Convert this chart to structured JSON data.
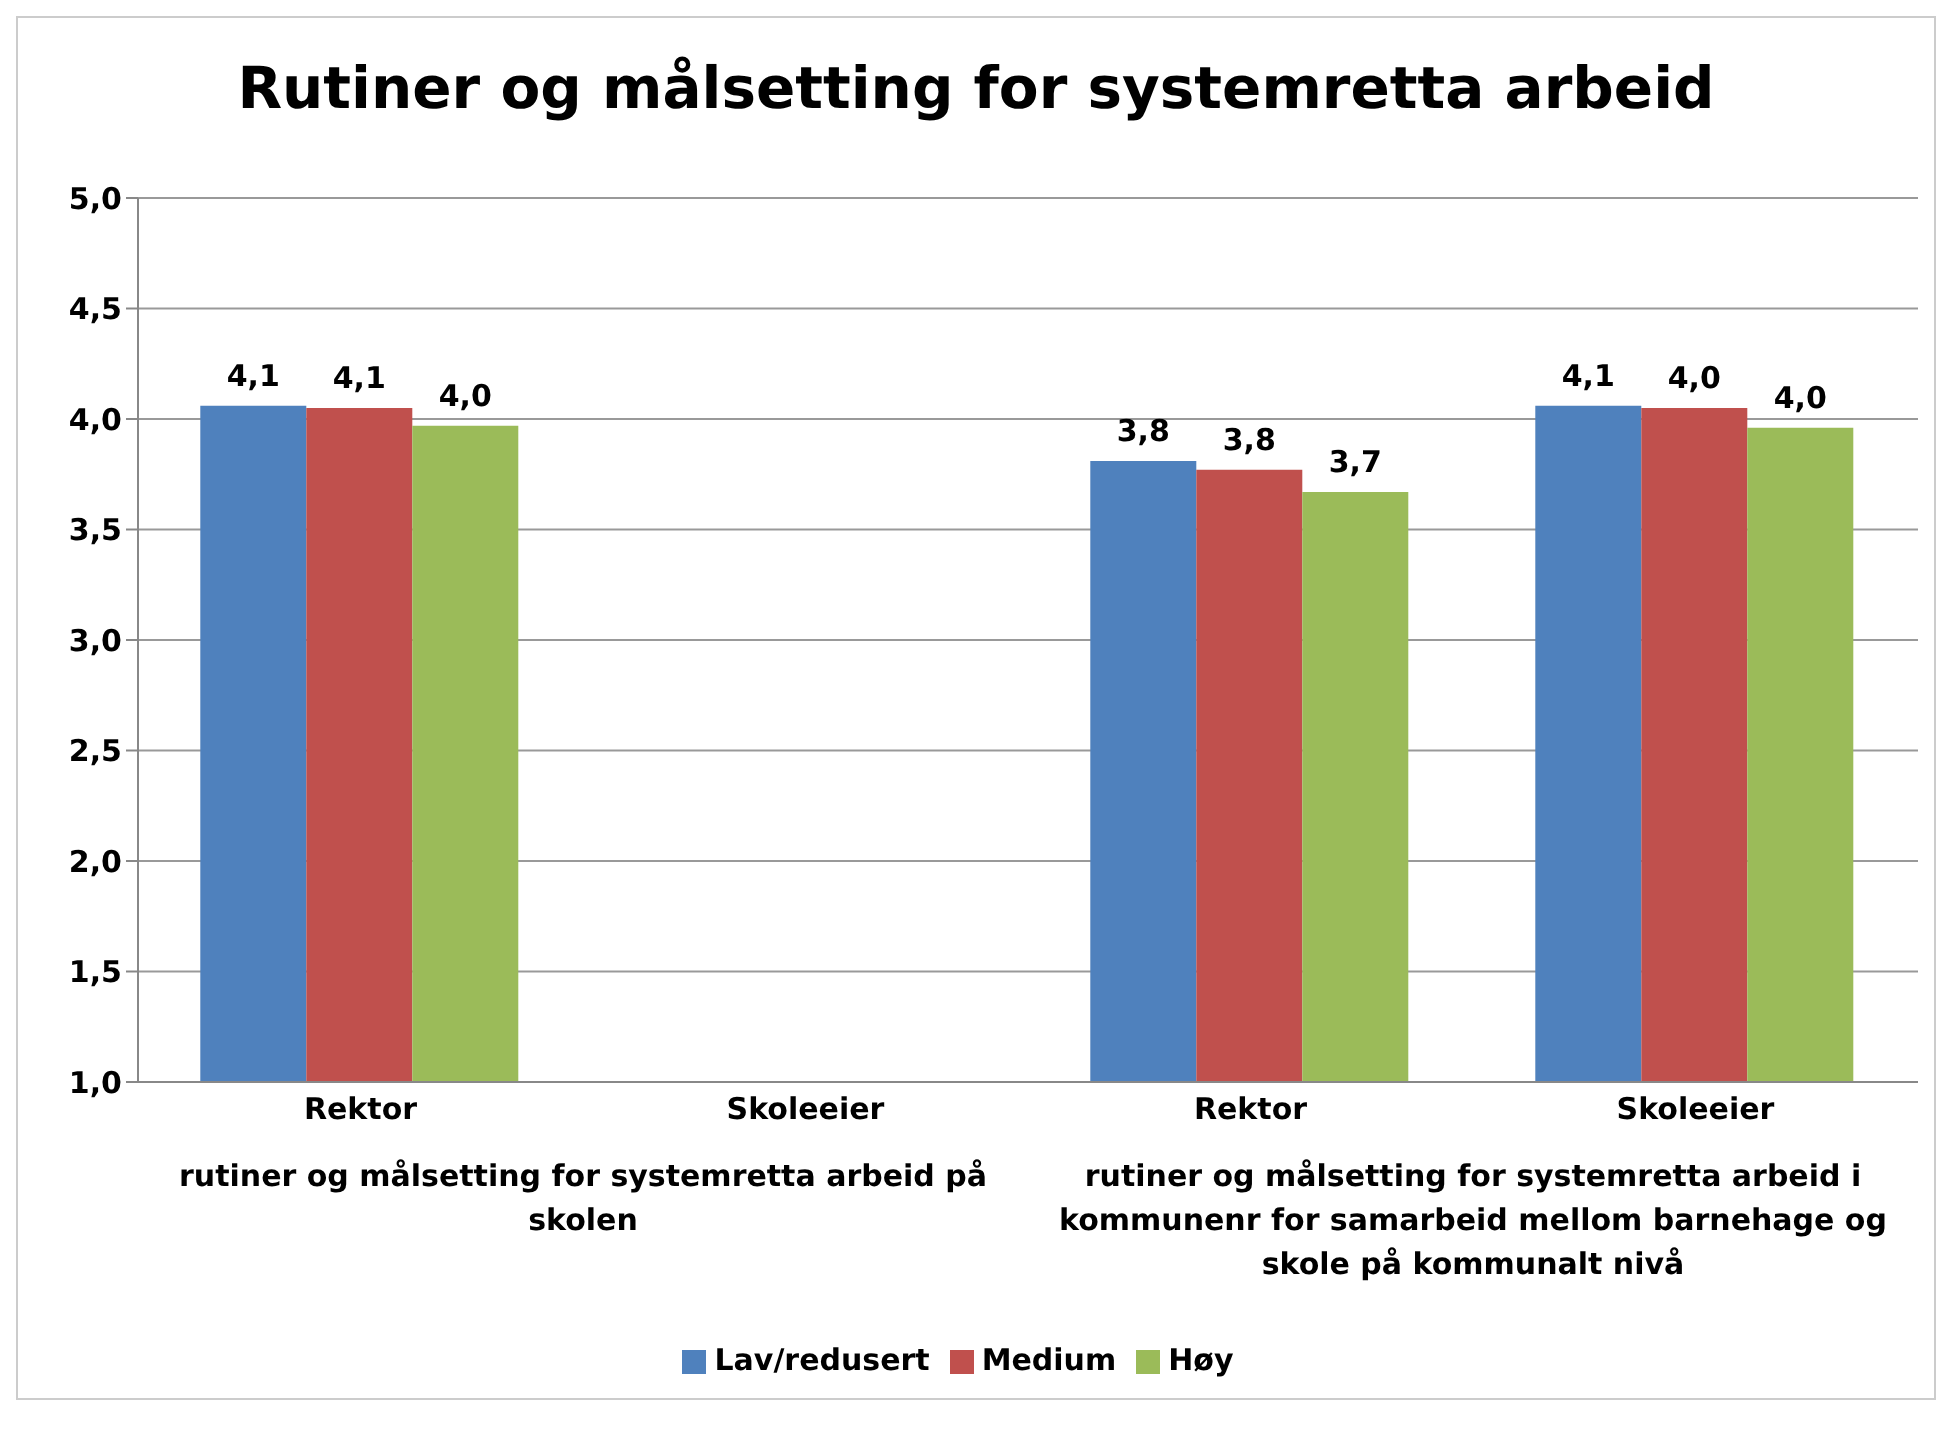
{
  "chart_data": {
    "type": "bar",
    "title": "Rutiner og målsetting for systemretta arbeid",
    "categories": [
      "Rektor",
      "Skoleeier",
      "Rektor",
      "Skoleeier"
    ],
    "series": [
      {
        "name": "Lav/redusert",
        "color": "#4f81bd",
        "values": [
          4.06,
          null,
          3.81,
          4.06
        ],
        "value_labels": [
          "4,1",
          null,
          "3,8",
          "4,1"
        ]
      },
      {
        "name": "Medium",
        "color": "#c0504d",
        "values": [
          4.05,
          null,
          3.77,
          4.05
        ],
        "value_labels": [
          "4,1",
          null,
          "3,8",
          "4,0"
        ]
      },
      {
        "name": "Høy",
        "color": "#9bbb59",
        "values": [
          3.97,
          null,
          3.67,
          3.96
        ],
        "value_labels": [
          "4,0",
          null,
          "3,7",
          "4,0"
        ]
      }
    ],
    "ylim": [
      1,
      5
    ],
    "yticks": [
      {
        "value": 1,
        "label": "1,0"
      },
      {
        "value": 1.5,
        "label": "1,5"
      },
      {
        "value": 2,
        "label": "2,0"
      },
      {
        "value": 2.5,
        "label": "2,5"
      },
      {
        "value": 3,
        "label": "3,0"
      },
      {
        "value": 3.5,
        "label": "3,5"
      },
      {
        "value": 4,
        "label": "4,0"
      },
      {
        "value": 4.5,
        "label": "4,5"
      },
      {
        "value": 5,
        "label": "5,0"
      }
    ],
    "grid": "y",
    "legend": "bottom",
    "annotations": [
      "rutiner og målsetting for systemretta arbeid på skolen",
      "rutiner og målsetting for systemretta arbeid i kommunenr for samarbeid mellom barnehage og skole på kommunalt nivå"
    ]
  }
}
